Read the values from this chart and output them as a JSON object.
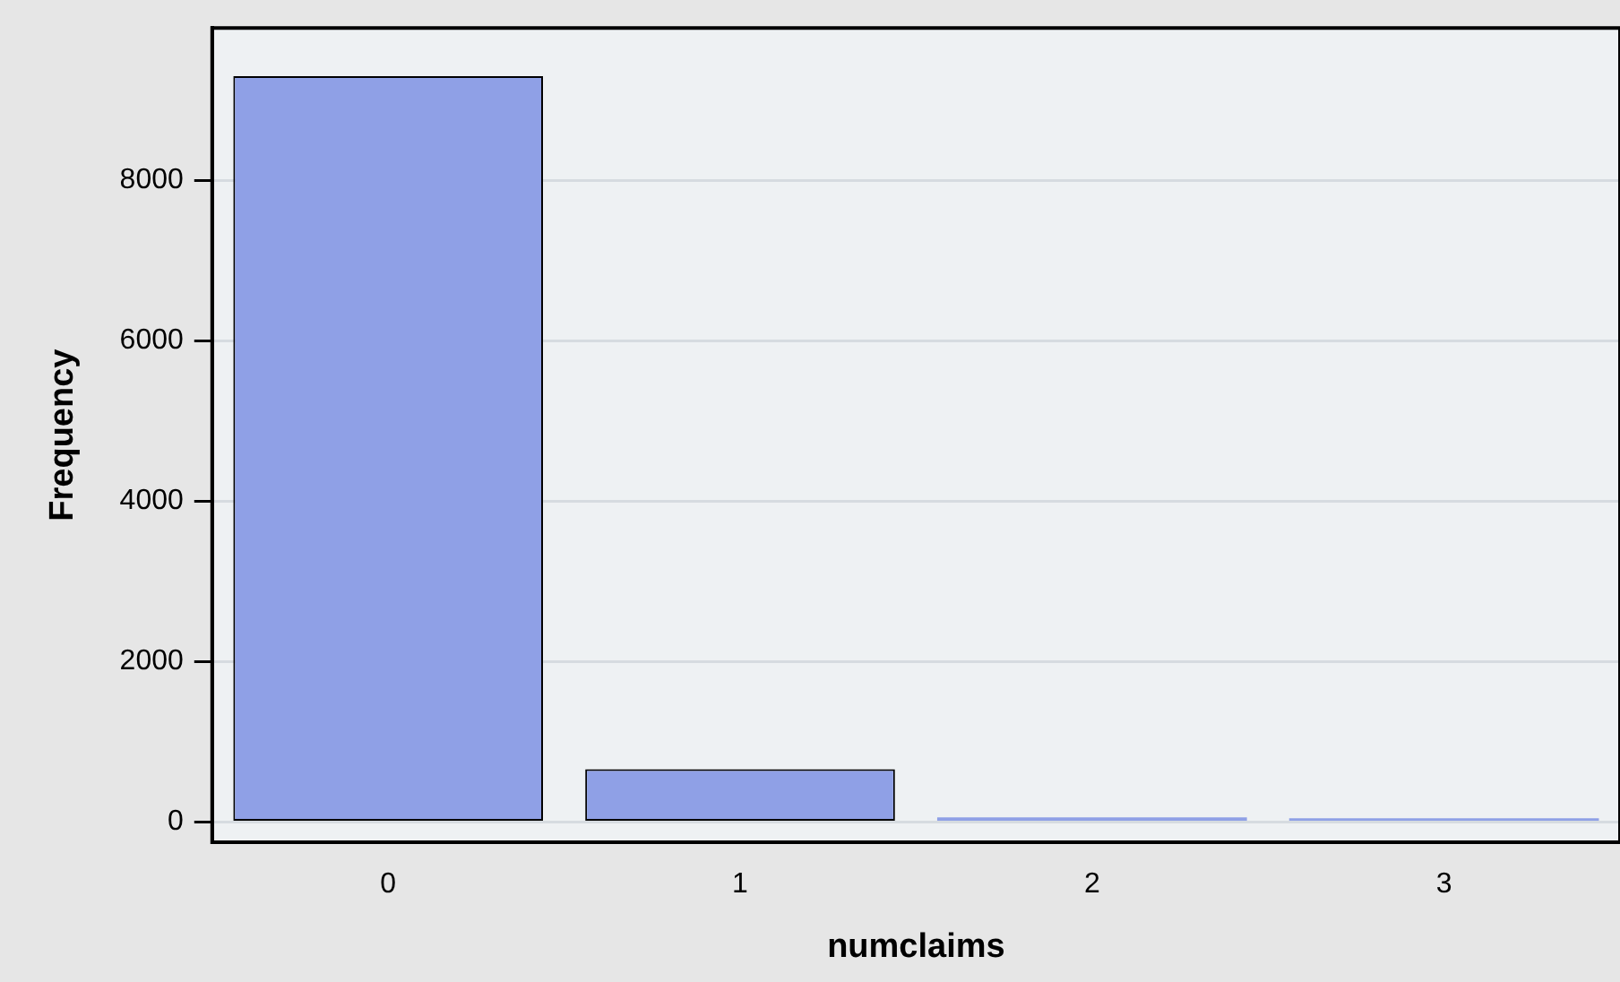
{
  "chart_data": {
    "type": "bar",
    "xlabel": "numclaims",
    "ylabel": "Frequency",
    "categories": [
      "0",
      "1",
      "2",
      "3"
    ],
    "values": [
      9300,
      660,
      60,
      50
    ],
    "color": "#8fa0e6",
    "ylim": [
      -250,
      9900
    ],
    "yticks": [
      0,
      2000,
      4000,
      6000,
      8000
    ],
    "grid": "y",
    "legend": false
  }
}
